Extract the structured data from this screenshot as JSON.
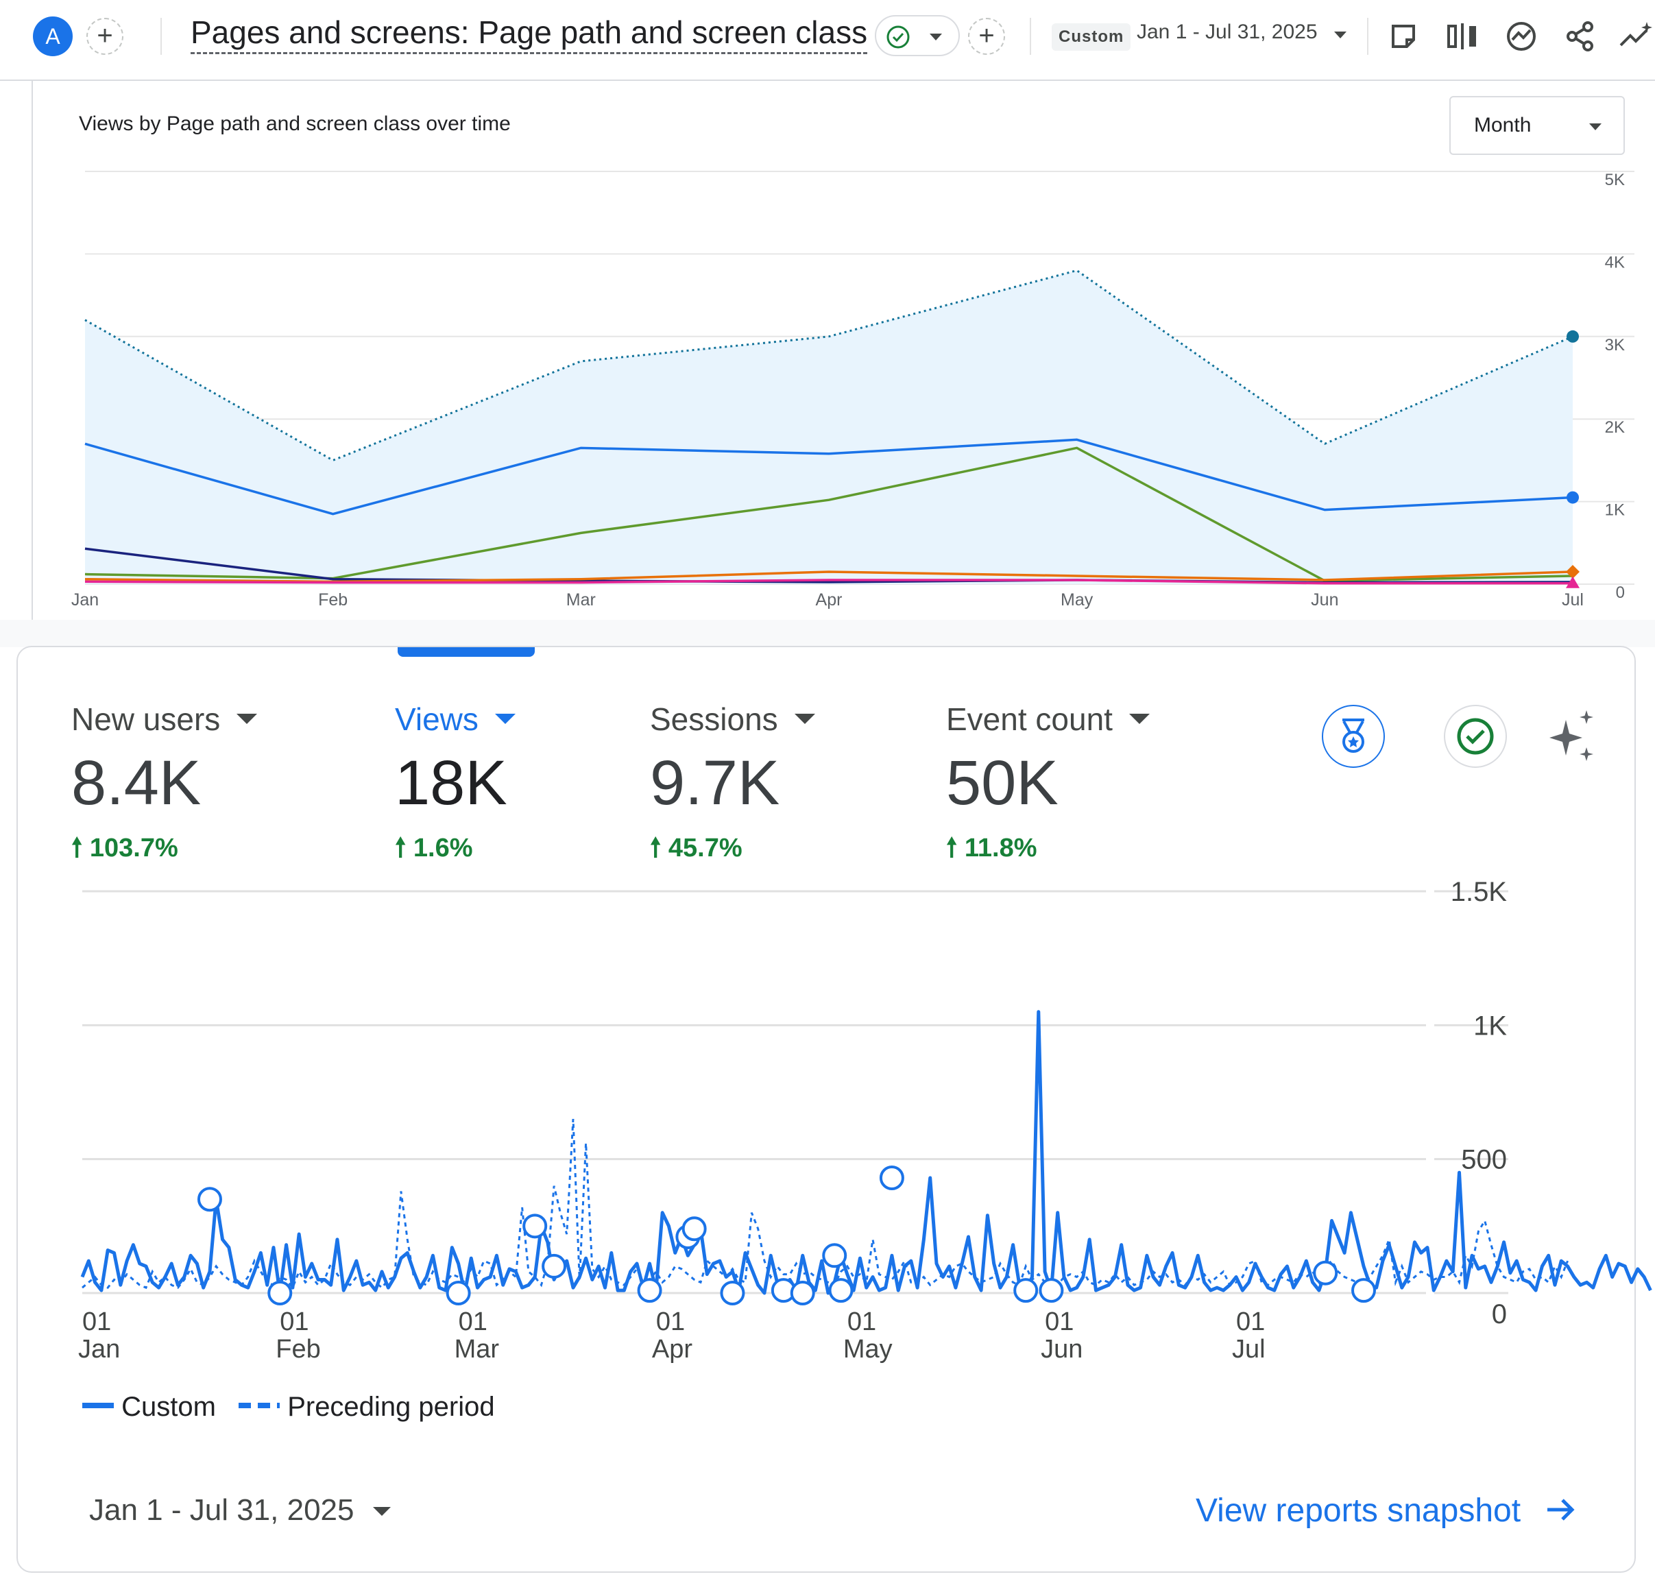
{
  "header": {
    "avatar_letter": "A",
    "add_label": "+",
    "report_title": "Pages and screens: Page path and screen class",
    "compare_add_label": "+",
    "date_chip": "Custom",
    "date_range": "Jan 1 - Jul 31, 2025",
    "tools": [
      "edit-report-icon",
      "compare-icon",
      "insights-icon",
      "share-icon",
      "trend-icon"
    ]
  },
  "top_chart": {
    "title": "Views by Page path and screen class over time",
    "granularity": "Month"
  },
  "metrics": [
    {
      "label": "New users",
      "value": "8.4K",
      "change": "103.7%"
    },
    {
      "label": "Views",
      "value": "18K",
      "change": "1.6%"
    },
    {
      "label": "Sessions",
      "value": "9.7K",
      "change": "45.7%"
    },
    {
      "label": "Event count",
      "value": "50K",
      "change": "11.8%"
    }
  ],
  "bottom_chart": {
    "legend_custom": "Custom",
    "legend_preceding": "Preceding period"
  },
  "footer": {
    "date_range": "Jan 1 - Jul 31, 2025",
    "snapshot_link": "View reports snapshot"
  },
  "colors": {
    "accent": "#1a73e8",
    "positive": "#188038",
    "area_fill": "#e8f4fd",
    "total_line": "#12739a",
    "series_green": "#5f9a2d",
    "series_navy": "#1a237e",
    "series_orange": "#e8710a",
    "series_magenta": "#e52592"
  },
  "chart_data": [
    {
      "type": "line",
      "title": "Views by Page path and screen class over time",
      "categories": [
        "Jan",
        "Feb",
        "Mar",
        "Apr",
        "May",
        "Jun",
        "Jul"
      ],
      "ylim": [
        0,
        5000
      ],
      "yticks": [
        "0",
        "1K",
        "2K",
        "3K",
        "4K",
        "5K"
      ],
      "grid": true,
      "series": [
        {
          "role": "total",
          "style": "dotted-area",
          "values": [
            3200,
            1500,
            2700,
            3000,
            3800,
            1700,
            3000
          ]
        },
        {
          "role": "blue",
          "values": [
            1700,
            850,
            1650,
            1580,
            1750,
            900,
            1050
          ]
        },
        {
          "role": "green",
          "values": [
            120,
            70,
            620,
            1020,
            1650,
            40,
            100
          ]
        },
        {
          "role": "navy",
          "values": [
            430,
            60,
            40,
            25,
            50,
            20,
            25
          ]
        },
        {
          "role": "orange",
          "values": [
            60,
            30,
            60,
            150,
            100,
            50,
            150
          ]
        },
        {
          "role": "magenta",
          "values": [
            30,
            20,
            20,
            50,
            50,
            10,
            10
          ]
        }
      ]
    },
    {
      "type": "line",
      "x_range": [
        "2025-01-01",
        "2025-07-31"
      ],
      "x_ticks": [
        {
          "day": "01",
          "month": "Jan",
          "date": "2025-01-01"
        },
        {
          "day": "01",
          "month": "Feb",
          "date": "2025-02-01"
        },
        {
          "day": "01",
          "month": "Mar",
          "date": "2025-03-01"
        },
        {
          "day": "01",
          "month": "Apr",
          "date": "2025-04-01"
        },
        {
          "day": "01",
          "month": "May",
          "date": "2025-05-01"
        },
        {
          "day": "01",
          "month": "Jun",
          "date": "2025-06-01"
        },
        {
          "day": "01",
          "month": "Jul",
          "date": "2025-07-01"
        }
      ],
      "ylim": [
        0,
        1500
      ],
      "yticks": [
        "0",
        "500",
        "1K",
        "1.5K"
      ],
      "legend": "bottom-left",
      "series": [
        {
          "name": "Custom",
          "style": "solid",
          "anomalies": [
            {
              "date": "2025-01-21",
              "value": 350
            },
            {
              "date": "2025-02-01",
              "value": 0
            },
            {
              "date": "2025-03-01",
              "value": 0
            },
            {
              "date": "2025-03-13",
              "value": 250
            },
            {
              "date": "2025-03-16",
              "value": 100
            },
            {
              "date": "2025-03-31",
              "value": 10
            },
            {
              "date": "2025-04-06",
              "value": 210
            },
            {
              "date": "2025-04-07",
              "value": 240
            },
            {
              "date": "2025-04-13",
              "value": 0
            },
            {
              "date": "2025-04-21",
              "value": 10
            },
            {
              "date": "2025-04-24",
              "value": 0
            },
            {
              "date": "2025-04-29",
              "value": 140
            },
            {
              "date": "2025-04-30",
              "value": 10
            },
            {
              "date": "2025-05-08",
              "value": 430
            },
            {
              "date": "2025-05-29",
              "value": 10
            },
            {
              "date": "2025-06-02",
              "value": 10
            },
            {
              "date": "2025-07-15",
              "value": 75
            },
            {
              "date": "2025-07-21",
              "value": 10
            }
          ],
          "values": [
            60,
            120,
            40,
            10,
            160,
            150,
            30,
            120,
            180,
            110,
            100,
            40,
            20,
            60,
            110,
            30,
            60,
            140,
            110,
            20,
            80,
            350,
            200,
            170,
            50,
            30,
            20,
            80,
            150,
            30,
            170,
            0,
            180,
            20,
            220,
            60,
            110,
            50,
            50,
            30,
            200,
            10,
            60,
            120,
            30,
            40,
            10,
            80,
            20,
            60,
            130,
            150,
            80,
            20,
            60,
            140,
            20,
            10,
            170,
            110,
            0,
            130,
            20,
            50,
            60,
            140,
            30,
            90,
            80,
            20,
            30,
            60,
            250,
            190,
            50,
            100,
            120,
            20,
            60,
            130,
            50,
            100,
            20,
            150,
            10,
            10,
            80,
            110,
            20,
            110,
            10,
            300,
            250,
            150,
            210,
            140,
            180,
            240,
            70,
            110,
            120,
            60,
            80,
            10,
            150,
            90,
            30,
            0,
            140,
            40,
            20,
            50,
            10,
            140,
            40,
            10,
            120,
            0,
            40,
            140,
            70,
            10,
            130,
            20,
            60,
            10,
            20,
            140,
            10,
            100,
            120,
            20,
            200,
            430,
            110,
            60,
            100,
            20,
            110,
            210,
            60,
            10,
            290,
            110,
            20,
            60,
            180,
            30,
            10,
            60,
            1050,
            80,
            10,
            300,
            60,
            10,
            20,
            60,
            200,
            10,
            20,
            30,
            60,
            180,
            30,
            10,
            20,
            140,
            60,
            30,
            100,
            150,
            30,
            20,
            60,
            140,
            40,
            10,
            20,
            10,
            30,
            60,
            10,
            40,
            110,
            60,
            20,
            10,
            70,
            100,
            20,
            60,
            120,
            40,
            10,
            80,
            270,
            210,
            150,
            300,
            200,
            100,
            30,
            20,
            120,
            180,
            100,
            20,
            60,
            190,
            150,
            170,
            10,
            60,
            120,
            80,
            450,
            20,
            140,
            90,
            100,
            40,
            100,
            190,
            75,
            120,
            50,
            40,
            10,
            100,
            140,
            30,
            120,
            100,
            60,
            30,
            40,
            20,
            90,
            140,
            60,
            110,
            100,
            40,
            90,
            60,
            10
          ]
        },
        {
          "name": "Preceding period",
          "style": "dashed",
          "values": [
            20,
            40,
            60,
            30,
            20,
            50,
            40,
            70,
            50,
            30,
            20,
            80,
            40,
            60,
            30,
            20,
            50,
            90,
            40,
            30,
            60,
            100,
            70,
            50,
            40,
            30,
            60,
            120,
            80,
            40,
            30,
            60,
            50,
            20,
            80,
            40,
            60,
            30,
            50,
            110,
            70,
            40,
            30,
            60,
            50,
            70,
            40,
            20,
            50,
            60,
            380,
            200,
            60,
            40,
            30,
            80,
            50,
            40,
            70,
            60,
            40,
            90,
            60,
            120,
            110,
            30,
            50,
            80,
            60,
            320,
            80,
            60,
            30,
            110,
            400,
            300,
            220,
            650,
            50,
            560,
            90,
            60,
            100,
            50,
            40,
            30,
            60,
            90,
            40,
            50,
            80,
            40,
            60,
            100,
            90,
            70,
            50,
            40,
            120,
            100,
            80,
            60,
            90,
            50,
            40,
            300,
            240,
            120,
            60,
            100,
            70,
            70,
            110,
            70,
            80,
            60,
            50,
            40,
            30,
            80,
            100,
            60,
            70,
            40,
            200,
            70,
            60,
            50,
            80,
            120,
            40,
            40,
            60,
            30,
            50,
            70,
            60,
            100,
            110,
            80,
            60,
            40,
            50,
            60,
            110,
            70,
            40,
            30,
            100,
            50,
            70,
            40,
            20,
            30,
            60,
            70,
            60,
            80,
            40,
            30,
            50,
            40,
            70,
            40,
            60,
            30,
            40,
            50,
            80,
            60,
            70,
            40,
            50,
            30,
            60,
            50,
            70,
            40,
            60,
            80,
            30,
            40,
            60,
            110,
            120,
            40,
            30,
            50,
            60,
            50,
            40,
            70,
            60,
            80,
            40,
            100,
            120,
            80,
            60,
            50,
            40,
            40,
            60,
            100,
            140,
            200,
            40,
            100,
            40,
            60,
            80,
            70,
            50,
            60,
            60,
            80,
            40,
            140,
            100,
            230,
            270,
            180,
            100,
            60,
            50,
            40,
            80,
            90,
            50,
            60,
            40,
            100,
            60,
            120
          ]
        }
      ]
    }
  ]
}
